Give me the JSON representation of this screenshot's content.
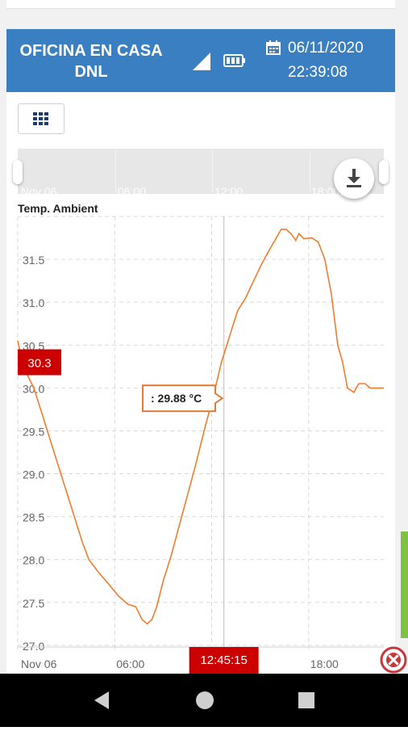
{
  "header": {
    "device_name": "OFICINA EN CASA DNL",
    "date": "06/11/2020",
    "time": "22:39:08"
  },
  "icons": {
    "signal": "signal-icon",
    "battery": "battery-icon",
    "calendar": "calendar-icon",
    "grid": "grid-icon",
    "download": "download-icon",
    "close": "close-circle-icon",
    "nav_back": "back-icon",
    "nav_home": "home-icon",
    "nav_recent": "recent-apps-icon"
  },
  "colors": {
    "header": "#3a7fc1",
    "series": "#f07c2c",
    "marker": "#cc0000",
    "right_tab": "#7dc242"
  },
  "navigator": {
    "ticks": [
      "Nov 06",
      "06:00",
      "12:00",
      "18:00"
    ]
  },
  "chart_data": {
    "type": "line",
    "title": "Temp. Ambient",
    "xlabel": "",
    "ylabel": "",
    "x_ticks": [
      "Nov 06",
      "06:00",
      "12:00",
      "18:00"
    ],
    "x_range_hours": [
      0,
      22.65
    ],
    "y_ticks": [
      "27.0",
      "27.5",
      "28.0",
      "28.5",
      "29.0",
      "29.5",
      "30.0",
      "30.5",
      "31.0",
      "31.5"
    ],
    "ylim": [
      26.98,
      32.0
    ],
    "grid": true,
    "series": [
      {
        "values": [
          [
            0.0,
            30.55
          ],
          [
            0.3,
            30.3
          ],
          [
            0.6,
            30.15
          ],
          [
            1.0,
            30.0
          ],
          [
            1.5,
            29.7
          ],
          [
            2.0,
            29.4
          ],
          [
            2.5,
            29.1
          ],
          [
            3.0,
            28.8
          ],
          [
            3.5,
            28.5
          ],
          [
            4.0,
            28.2
          ],
          [
            4.4,
            28.0
          ],
          [
            5.0,
            27.85
          ],
          [
            5.6,
            27.72
          ],
          [
            6.2,
            27.58
          ],
          [
            6.8,
            27.48
          ],
          [
            7.3,
            27.45
          ],
          [
            7.7,
            27.3
          ],
          [
            8.0,
            27.25
          ],
          [
            8.3,
            27.3
          ],
          [
            8.6,
            27.45
          ],
          [
            9.0,
            27.75
          ],
          [
            9.5,
            28.05
          ],
          [
            10.0,
            28.4
          ],
          [
            10.5,
            28.75
          ],
          [
            11.0,
            29.1
          ],
          [
            11.6,
            29.55
          ],
          [
            12.1,
            29.9
          ],
          [
            12.6,
            30.3
          ],
          [
            13.1,
            30.6
          ],
          [
            13.6,
            30.9
          ],
          [
            14.1,
            31.05
          ],
          [
            14.6,
            31.25
          ],
          [
            15.1,
            31.45
          ],
          [
            15.6,
            31.62
          ],
          [
            16.0,
            31.75
          ],
          [
            16.3,
            31.85
          ],
          [
            16.6,
            31.85
          ],
          [
            16.9,
            31.8
          ],
          [
            17.2,
            31.72
          ],
          [
            17.4,
            31.8
          ],
          [
            17.7,
            31.74
          ],
          [
            18.2,
            31.75
          ],
          [
            18.6,
            31.7
          ],
          [
            19.0,
            31.5
          ],
          [
            19.4,
            31.1
          ],
          [
            19.8,
            30.5
          ],
          [
            20.1,
            30.3
          ],
          [
            20.4,
            30.0
          ],
          [
            20.8,
            29.95
          ],
          [
            21.1,
            30.05
          ],
          [
            21.5,
            30.05
          ],
          [
            21.8,
            30.0
          ],
          [
            22.2,
            30.0
          ],
          [
            22.65,
            30.0
          ]
        ]
      }
    ],
    "current_value_label": "30.3",
    "crosshair_time": "12:45:15",
    "crosshair_hour": 12.754,
    "tooltip_label": ": 29.88 °C",
    "tooltip_value": 29.88
  }
}
